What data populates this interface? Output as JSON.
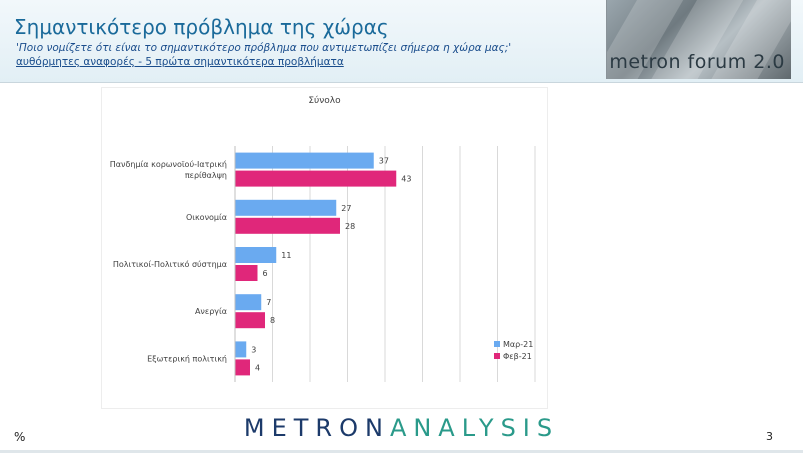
{
  "header": {
    "title": "Σημαντικότερο πρόβλημα της χώρας",
    "subtitle": "'Ποιο νομίζετε ότι είναι το σημαντικότερο πρόβλημα που αντιμετωπίζει σήμερα η χώρα μας;'",
    "note": "αυθόρμητες αναφορές - 5 πρώτα σημαντικότερα προβλήματα"
  },
  "logo": {
    "text": "metron forum 2.0"
  },
  "footer": {
    "brand_part1": "METRON",
    "brand_part2": "ANALYSIS",
    "percent_sign": "%",
    "page_number": "3"
  },
  "colors": {
    "series1": "#6aaaf0",
    "series2": "#e0277a",
    "grid": "#d9d9d9"
  },
  "chart_data": {
    "type": "bar",
    "orientation": "horizontal",
    "title": "Σύνολο",
    "categories": [
      [
        "Πανδημία κορωνοϊού-Ιατρική",
        "περίθαλψη"
      ],
      [
        "Οικονομία"
      ],
      [
        "Πολιτικοί-Πολιτικό σύστημα"
      ],
      [
        "Ανεργία"
      ],
      [
        "Εξωτερική πολιτική"
      ]
    ],
    "series": [
      {
        "name": "Μαρ-21",
        "values": [
          37,
          27,
          11,
          7,
          3
        ]
      },
      {
        "name": "Φεβ-21",
        "values": [
          43,
          28,
          6,
          8,
          4
        ]
      }
    ],
    "xlim": [
      0,
      80
    ],
    "gridlines": true,
    "legend_position": "bottom-right"
  }
}
